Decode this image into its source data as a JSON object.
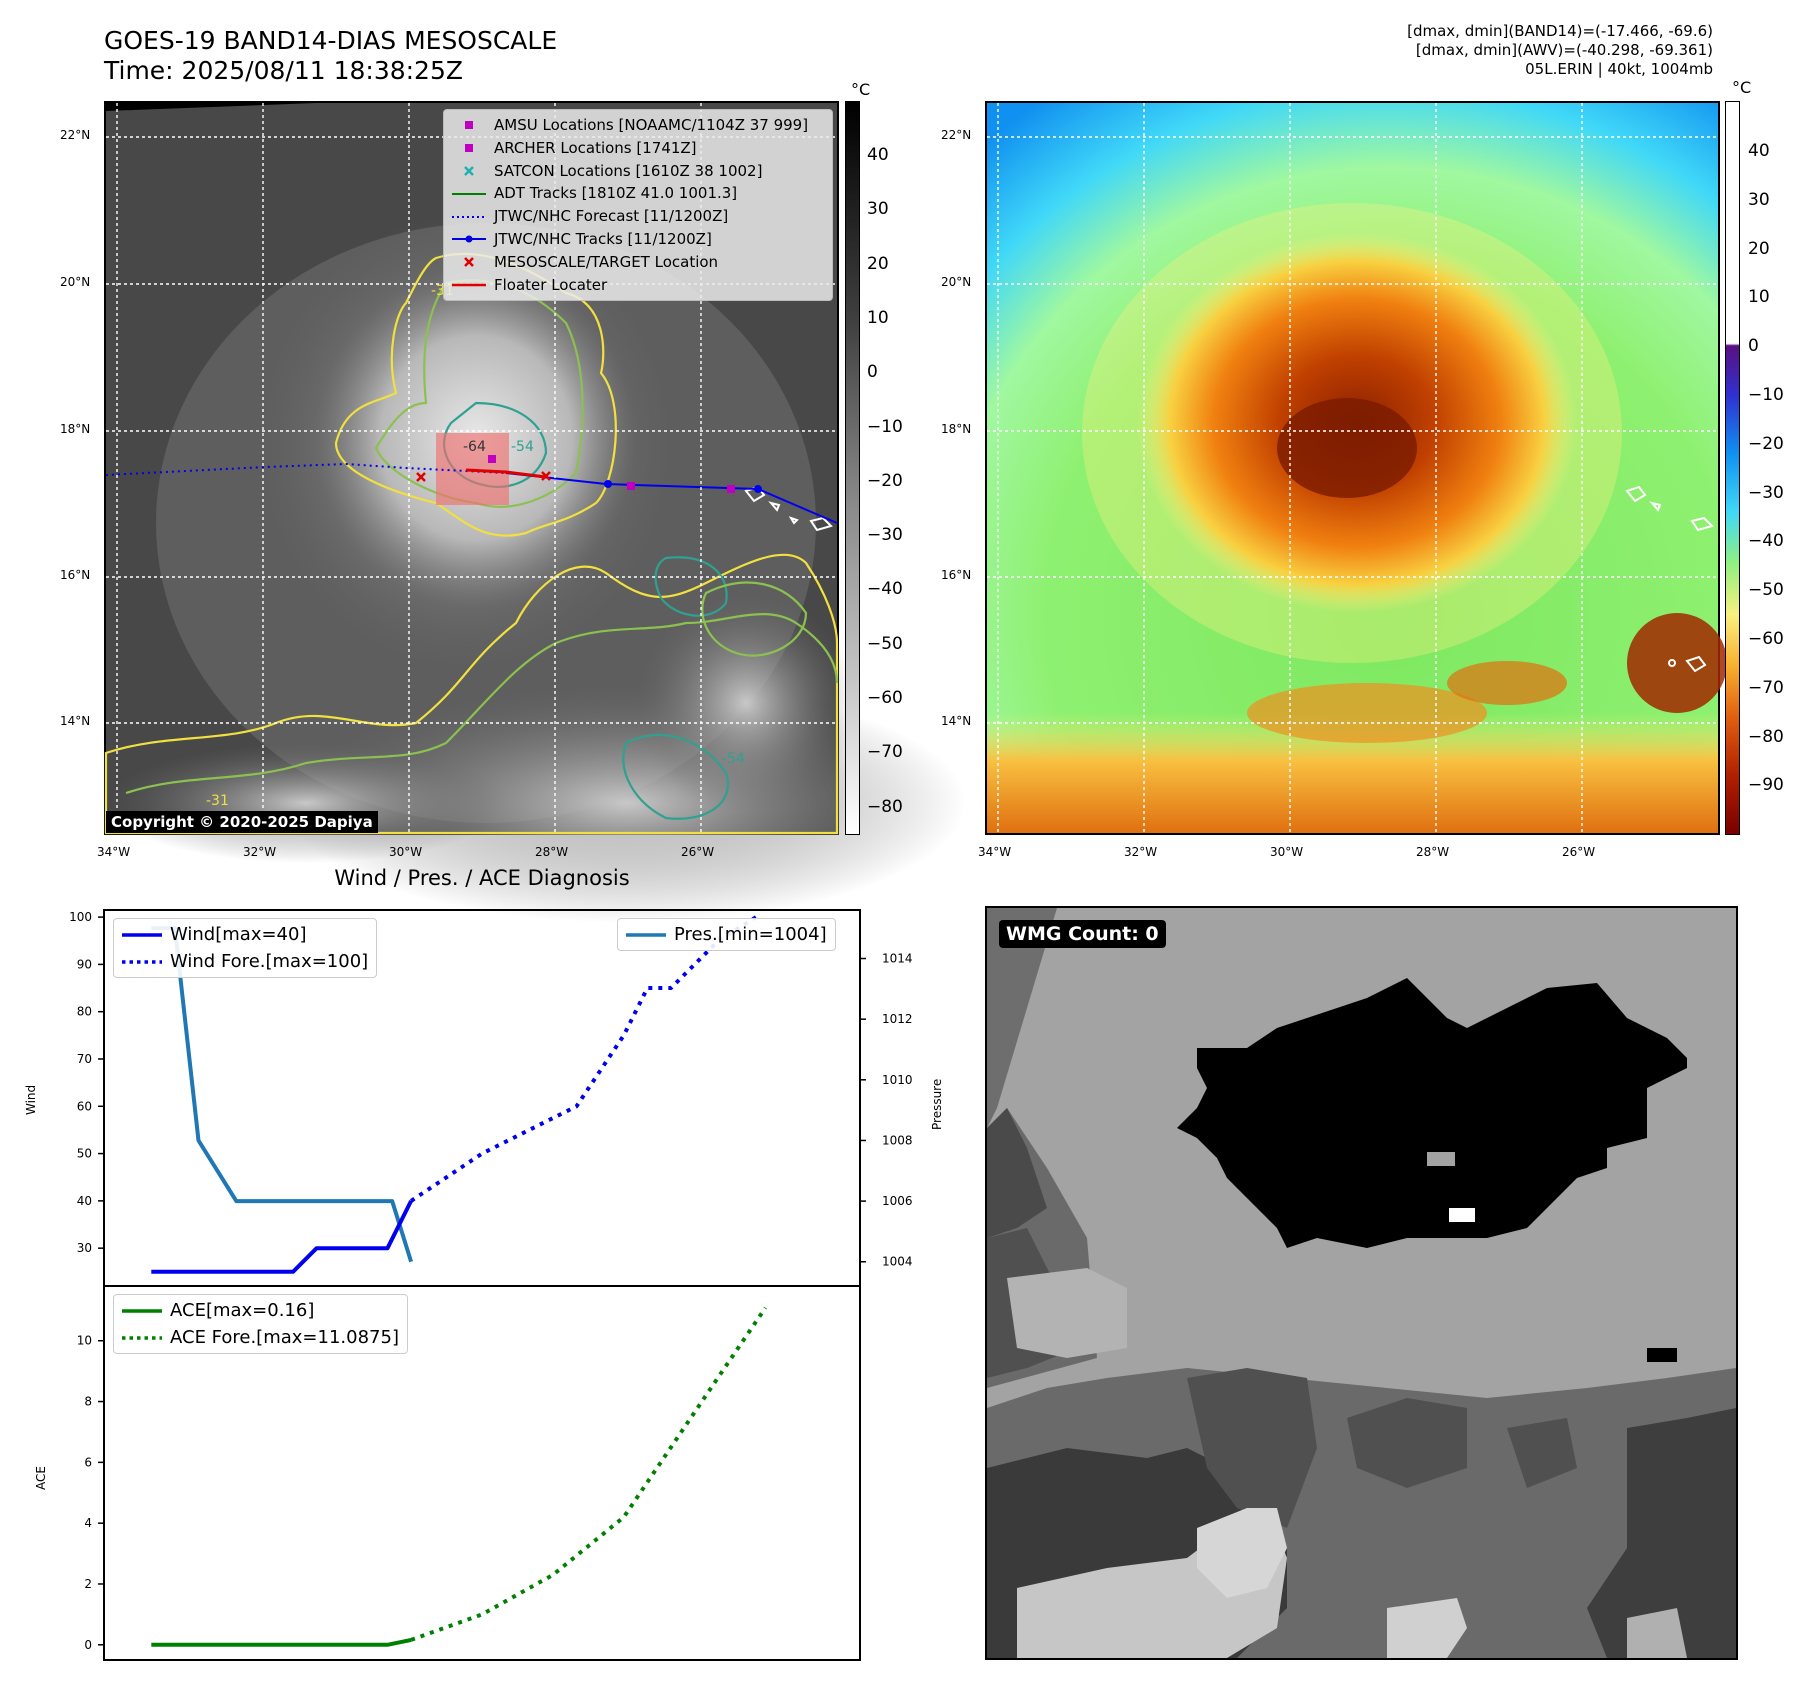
{
  "header": {
    "title_line1": "GOES-19 BAND14-DIAS MESOSCALE",
    "title_line2": "Time: 2025/08/11 18:38:25Z",
    "info_line1": "[dmax, dmin](BAND14)=(-17.466, -69.6)",
    "info_line2": "[dmax, dmin](AWV)=(-40.298, -69.361)",
    "info_line3": "05L.ERIN | 40kt, 1004mb"
  },
  "maps": {
    "lat_labels": [
      "22°N",
      "20°N",
      "18°N",
      "16°N",
      "14°N"
    ],
    "lon_labels": [
      "34°W",
      "32°W",
      "30°W",
      "28°W",
      "26°W"
    ],
    "colorbar_unit": "°C",
    "band14_colorbar_ticks": [
      "40",
      "30",
      "20",
      "10",
      "0",
      "−10",
      "−20",
      "−30",
      "−40",
      "−50",
      "−60",
      "−70",
      "−80"
    ],
    "awv_colorbar_ticks": [
      "40",
      "30",
      "20",
      "10",
      "0",
      "−10",
      "−20",
      "−30",
      "−40",
      "−50",
      "−60",
      "−70",
      "−80",
      "−90"
    ],
    "contour_labels": [
      "-64",
      "-54",
      "-54",
      "-31",
      "-31"
    ],
    "copyright": "Copyright © 2020-2025 Dapiya",
    "legend": [
      {
        "label": "AMSU Locations [NOAAMC/1104Z 37 999]",
        "marker": "square",
        "color": "#c000c0"
      },
      {
        "label": "ARCHER Locations [1741Z]",
        "marker": "square",
        "color": "#c000c0"
      },
      {
        "label": "SATCON Locations [1610Z 38 1002]",
        "marker": "x",
        "color": "#20b0b0"
      },
      {
        "label": "ADT Tracks [1810Z 41.0 1001.3]",
        "marker": "line",
        "color": "#008000"
      },
      {
        "label": "JTWC/NHC Forecast [11/1200Z]",
        "marker": "dotted",
        "color": "#0000e0"
      },
      {
        "label": "JTWC/NHC Tracks [11/1200Z]",
        "marker": "line-dot",
        "color": "#0000e0"
      },
      {
        "label": "MESOSCALE/TARGET Location",
        "marker": "x",
        "color": "#e00000"
      },
      {
        "label": "Floater Locater",
        "marker": "line",
        "color": "#e00000"
      }
    ]
  },
  "diagnosis": {
    "title": "Wind / Pres. / ACE Diagnosis",
    "wind_axis_label": "Wind",
    "pressure_axis_label": "Pressure",
    "ace_axis_label": "ACE",
    "wind_legend": [
      "Wind[max=40]",
      "Wind Fore.[max=100]"
    ],
    "pres_legend": [
      "Pres.[min=1004]"
    ],
    "ace_legend": [
      "ACE[max=0.16]",
      "ACE Fore.[max=11.0875]"
    ],
    "wmg_label": "WMG Count: 0"
  },
  "chart_data": [
    {
      "type": "line",
      "title": "Wind / Pres. / ACE Diagnosis",
      "ylabel": "Wind",
      "ylim": [
        22,
        101.5
      ],
      "xlim": [
        -1,
        15
      ],
      "yticks": [
        30,
        40,
        50,
        60,
        70,
        80,
        90,
        100
      ],
      "series": [
        {
          "name": "Wind[max=40]",
          "style": "solid",
          "color": "#0000ee",
          "x": [
            0,
            1,
            2,
            3,
            3.5,
            4,
            5,
            5.5
          ],
          "y": [
            25,
            25,
            25,
            25,
            30,
            30,
            30,
            40
          ]
        },
        {
          "name": "Wind Fore.[max=100]",
          "style": "dotted",
          "color": "#0000ee",
          "x": [
            5.5,
            7,
            8,
            9,
            10,
            10.5,
            11,
            12,
            12.8
          ],
          "y": [
            40,
            50,
            55,
            60,
            75,
            85,
            85,
            95,
            100
          ]
        }
      ]
    },
    {
      "type": "line",
      "ylabel": "Pressure",
      "ylim": [
        1003.2,
        1015.6
      ],
      "yticks": [
        1004,
        1006,
        1008,
        1010,
        1012,
        1014
      ],
      "series": [
        {
          "name": "Pres.[min=1004]",
          "style": "solid",
          "color": "#1f77b4",
          "x": [
            0,
            0.5,
            1,
            1.8,
            2.5,
            5.1,
            5.5
          ],
          "y": [
            1015,
            1015,
            1008,
            1006,
            1006,
            1006,
            1004
          ]
        }
      ]
    },
    {
      "type": "line",
      "ylabel": "ACE",
      "ylim": [
        -0.5,
        11.8
      ],
      "yticks": [
        0,
        2,
        4,
        6,
        8,
        10
      ],
      "series": [
        {
          "name": "ACE[max=0.16]",
          "style": "solid",
          "color": "#008000",
          "x": [
            0,
            5,
            5.5
          ],
          "y": [
            0,
            0,
            0.16
          ]
        },
        {
          "name": "ACE Fore.[max=11.0875]",
          "style": "dotted",
          "color": "#008000",
          "x": [
            5.5,
            7,
            8.5,
            10,
            11,
            12,
            13
          ],
          "y": [
            0.16,
            1,
            2.3,
            4.2,
            6.5,
            8.8,
            11.0875
          ]
        }
      ]
    }
  ]
}
